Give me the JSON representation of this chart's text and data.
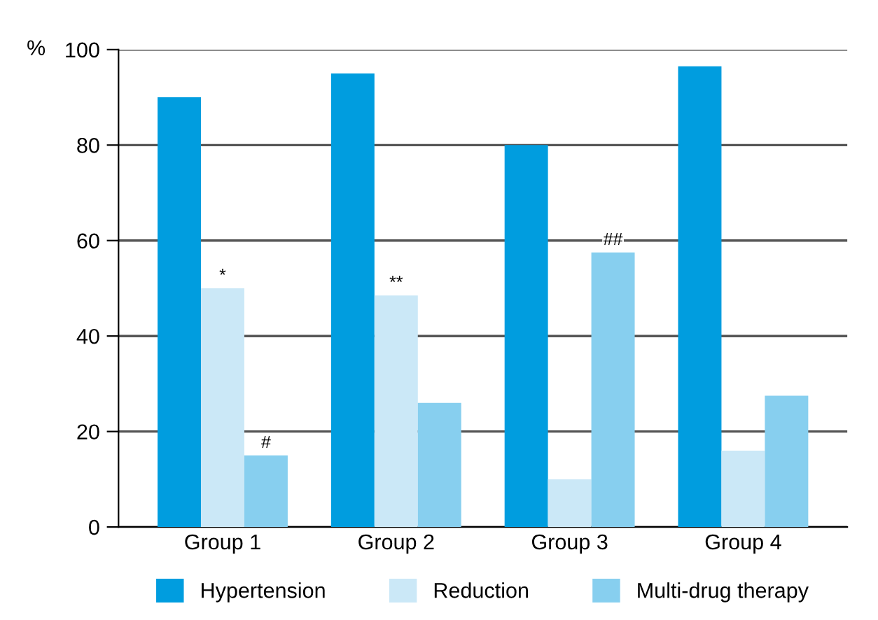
{
  "chart_data": {
    "type": "bar",
    "ylabel": "%",
    "categories": [
      "Group 1",
      "Group 2",
      "Group 3",
      "Group 4"
    ],
    "series": [
      {
        "name": "Hypertension",
        "color": "#009ddf",
        "values": [
          90,
          95,
          80,
          96.5
        ]
      },
      {
        "name": "Reduction",
        "color": "#cbe8f7",
        "values": [
          50,
          48.5,
          10,
          16
        ],
        "value_labels": [
          "*",
          "**",
          null,
          null
        ]
      },
      {
        "name": "Multi-drug therapy",
        "color": "#87cfef",
        "values": [
          15,
          26,
          57.5,
          27.5
        ],
        "value_labels": [
          "#",
          null,
          "##",
          null
        ]
      }
    ],
    "ylim": [
      0,
      100
    ],
    "yticks": [
      0,
      20,
      40,
      60,
      80,
      100
    ],
    "grid": "y",
    "legend": "bottom"
  }
}
